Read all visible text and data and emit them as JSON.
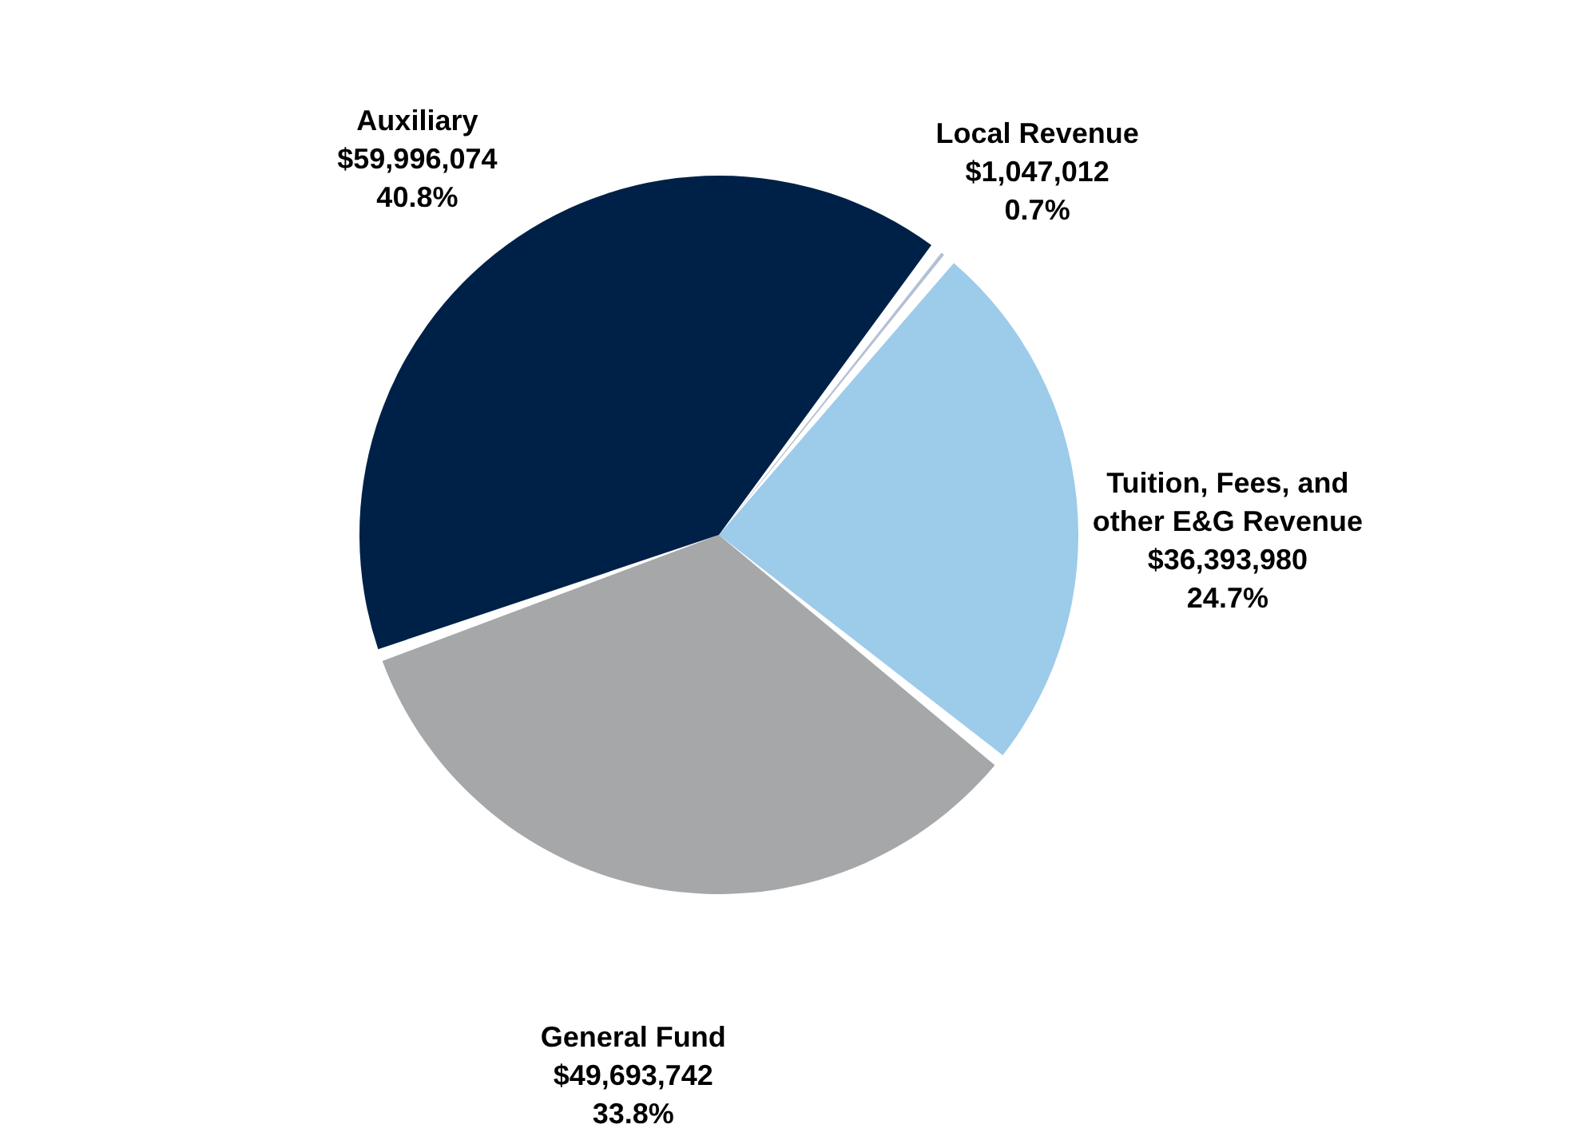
{
  "chart_data": {
    "type": "pie",
    "categories": [
      "Local Revenue",
      "Tuition, Fees, and other E&G Revenue",
      "General Fund",
      "Auxiliary"
    ],
    "values": [
      1047012,
      36393980,
      49693742,
      59996074
    ],
    "value_labels": [
      "$1,047,012\n0.7%",
      "$36,393,980\n24.7%",
      "$49,693,742\n33.8%",
      "$59,996,074\n40.8%"
    ],
    "colors": [
      "#b4c0d4",
      "#9dcbea",
      "#a5a7a8",
      "#002147"
    ]
  }
}
